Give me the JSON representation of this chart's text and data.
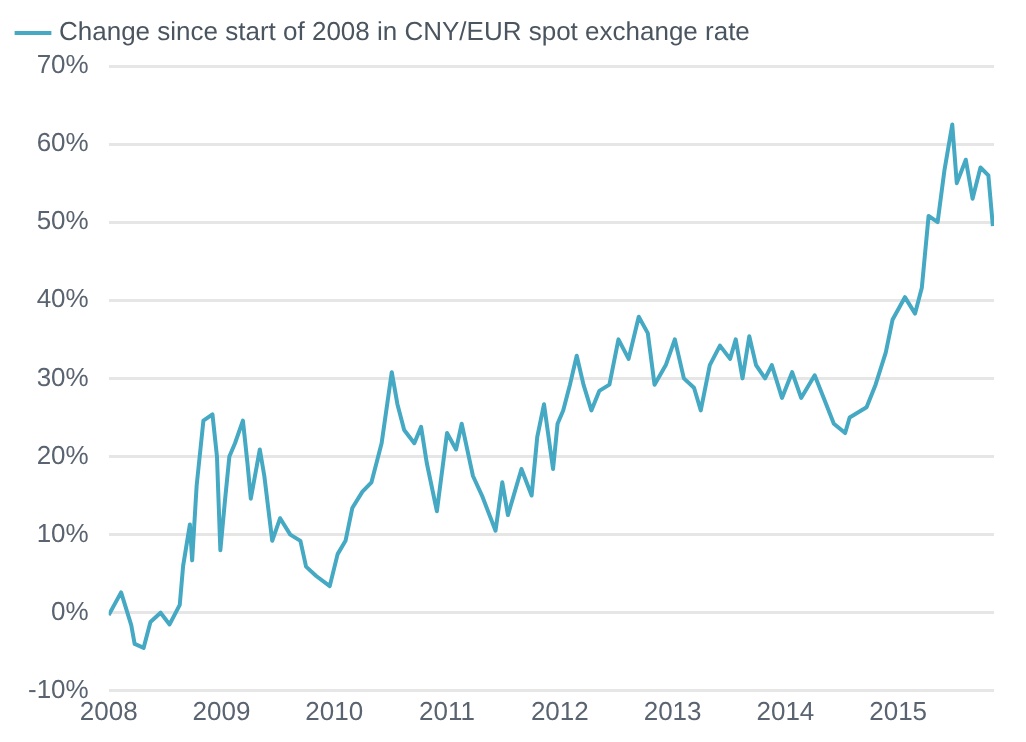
{
  "chart_data": {
    "type": "line",
    "legend": "top left",
    "grid": "y",
    "marker": "none",
    "line_style": "solid",
    "xlim": [
      2008,
      2015.85
    ],
    "xticks": [
      2008,
      2009,
      2010,
      2011,
      2012,
      2013,
      2014,
      2015
    ],
    "ylim": [
      -10,
      70
    ],
    "yticks": [
      {
        "value": -10,
        "label": "-10%"
      },
      {
        "value": 0,
        "label": "0%"
      },
      {
        "value": 10,
        "label": "10%"
      },
      {
        "value": 20,
        "label": "20%"
      },
      {
        "value": 30,
        "label": "30%"
      },
      {
        "value": 40,
        "label": "40%"
      },
      {
        "value": 50,
        "label": "50%"
      },
      {
        "value": 60,
        "label": "60%"
      },
      {
        "value": 70,
        "label": "70%"
      }
    ],
    "x": [
      2008.0,
      2008.11,
      2008.2,
      2008.23,
      2008.31,
      2008.37,
      2008.46,
      2008.54,
      2008.63,
      2008.66,
      2008.72,
      2008.74,
      2008.78,
      2008.84,
      2008.92,
      2008.96,
      2008.99,
      2009.03,
      2009.07,
      2009.12,
      2009.19,
      2009.23,
      2009.26,
      2009.34,
      2009.38,
      2009.45,
      2009.52,
      2009.61,
      2009.7,
      2009.75,
      2009.84,
      2009.96,
      2010.03,
      2010.1,
      2010.16,
      2010.25,
      2010.33,
      2010.42,
      2010.51,
      2010.56,
      2010.62,
      2010.71,
      2010.77,
      2010.82,
      2010.91,
      2011.0,
      2011.08,
      2011.13,
      2011.23,
      2011.31,
      2011.43,
      2011.49,
      2011.54,
      2011.66,
      2011.75,
      2011.8,
      2011.86,
      2011.94,
      2011.98,
      2012.03,
      2012.09,
      2012.15,
      2012.21,
      2012.28,
      2012.35,
      2012.44,
      2012.52,
      2012.61,
      2012.7,
      2012.78,
      2012.84,
      2012.94,
      2013.02,
      2013.1,
      2013.19,
      2013.25,
      2013.33,
      2013.42,
      2013.51,
      2013.56,
      2013.62,
      2013.68,
      2013.74,
      2013.82,
      2013.88,
      2013.97,
      2014.06,
      2014.14,
      2014.26,
      2014.34,
      2014.43,
      2014.53,
      2014.57,
      2014.72,
      2014.8,
      2014.89,
      2014.95,
      2015.06,
      2015.15,
      2015.21,
      2015.27,
      2015.35,
      2015.41,
      2015.48,
      2015.52,
      2015.6,
      2015.66,
      2015.73,
      2015.8,
      2015.84
    ],
    "series": [
      {
        "name": "Change since start of 2008 in CNY/EUR spot exchange rate",
        "color": "#45a9c4",
        "values": [
          -0.3,
          2.6,
          -1.6,
          -4,
          -4.5,
          -1.2,
          0,
          -1.5,
          1,
          6,
          11.3,
          6.7,
          16.3,
          24.6,
          25.4,
          20,
          8,
          14.2,
          20,
          21.7,
          24.6,
          19.2,
          14.6,
          20.9,
          17.5,
          9.2,
          12.1,
          10,
          9.2,
          5.9,
          4.7,
          3.4,
          7.5,
          9.2,
          13.4,
          15.5,
          16.7,
          21.7,
          30.8,
          26.7,
          23.4,
          21.7,
          23.8,
          19.2,
          13,
          23,
          20.9,
          24.2,
          17.5,
          15,
          10.5,
          16.7,
          12.5,
          18.4,
          15,
          22.5,
          26.7,
          18.4,
          24.2,
          25.9,
          29.2,
          32.9,
          29.2,
          25.9,
          28.4,
          29.2,
          35,
          32.5,
          37.9,
          35.8,
          29.2,
          31.7,
          35,
          30,
          28.8,
          25.9,
          31.7,
          34.2,
          32.5,
          35,
          30,
          35.4,
          31.7,
          30,
          31.7,
          27.5,
          30.8,
          27.5,
          30.4,
          27.5,
          24.2,
          23,
          25,
          26.3,
          29.2,
          33.3,
          37.5,
          40.4,
          38.3,
          41.6,
          50.8,
          50,
          56.6,
          62.5,
          55,
          58,
          53,
          57,
          56,
          49.5
        ]
      }
    ]
  }
}
